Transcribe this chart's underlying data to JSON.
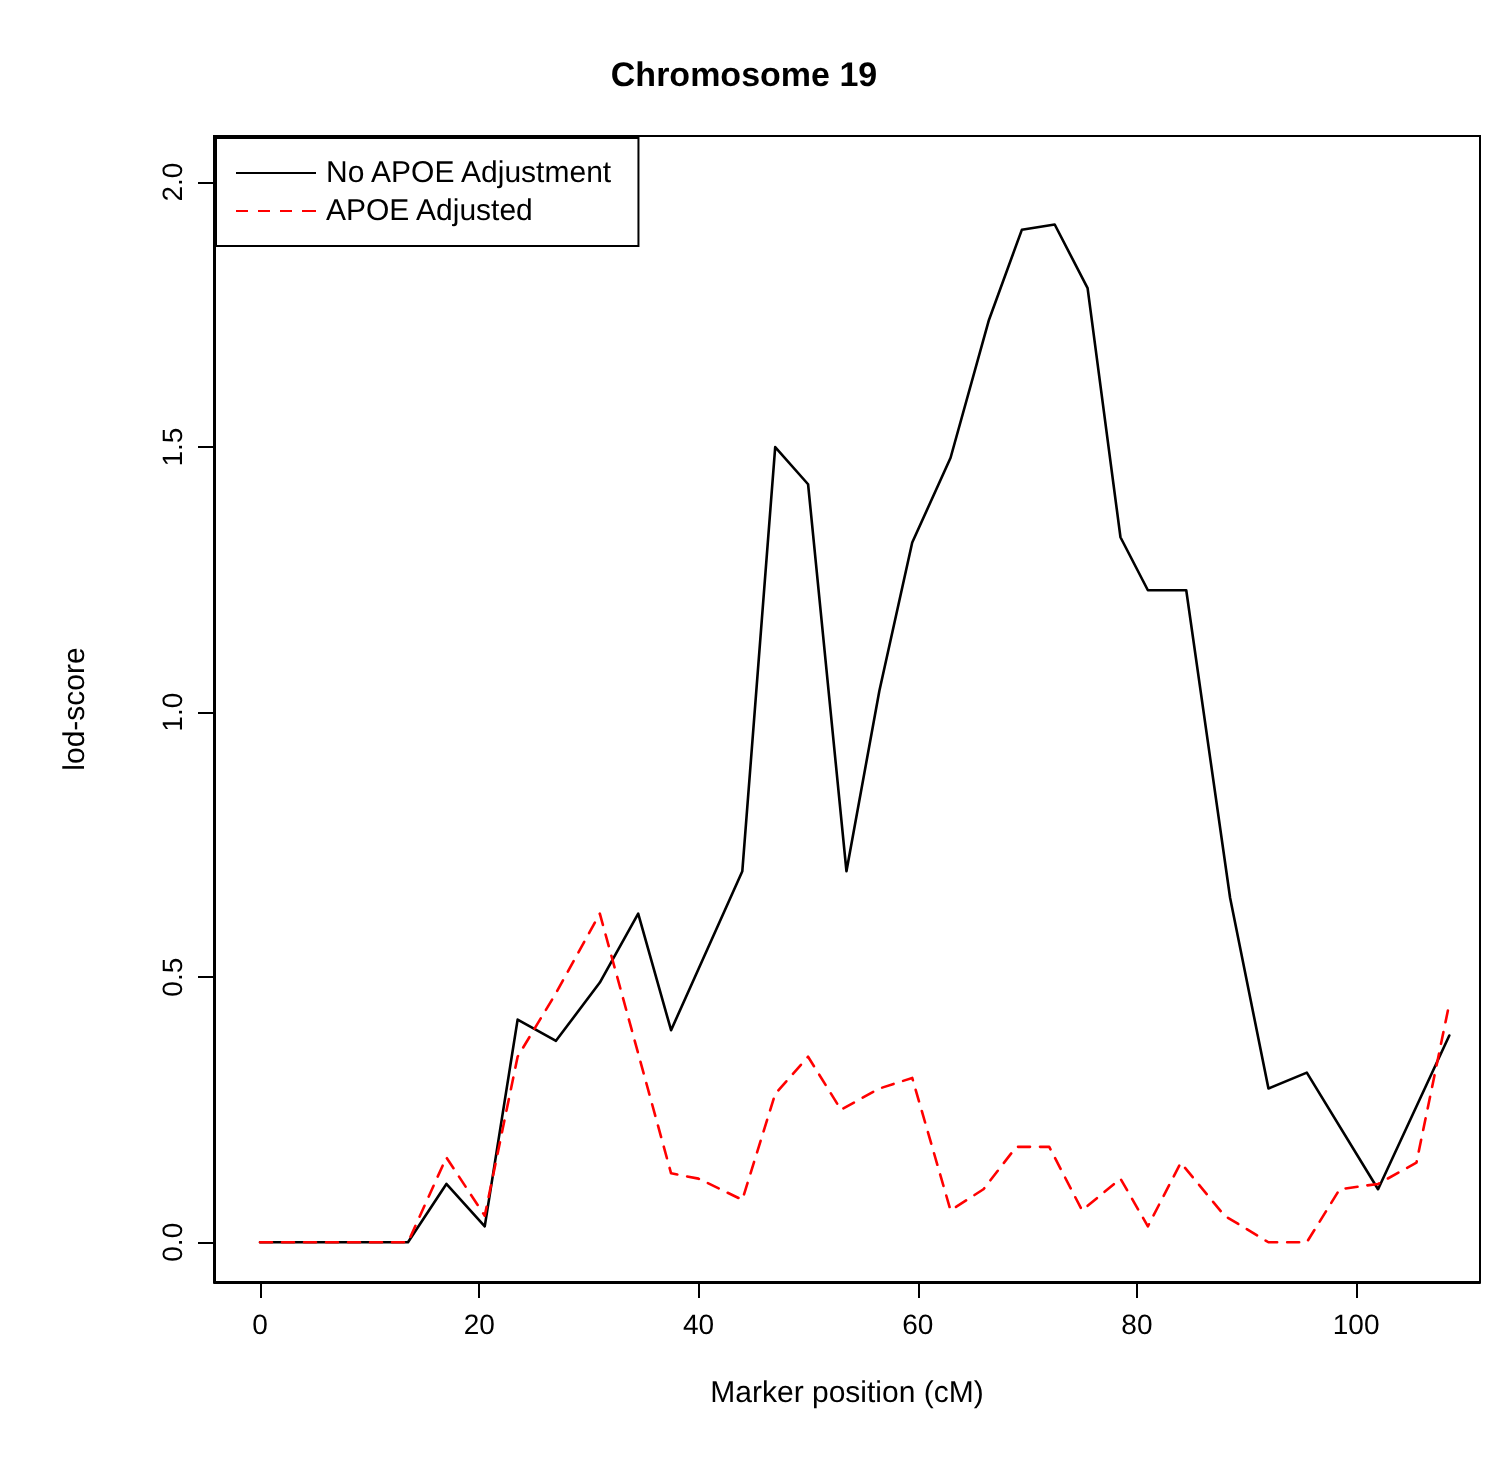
{
  "chart_data": {
    "type": "line",
    "title": "Chromosome 19",
    "xlabel": "Marker position (cM)",
    "ylabel": "lod-score",
    "xlim": [
      -4.2,
      111.3
    ],
    "xticks": [
      0,
      20,
      40,
      60,
      80,
      100
    ],
    "ylim": [
      -0.075,
      2.087
    ],
    "yticks": [
      {
        "value": 0,
        "label": "0.0"
      },
      0.5,
      {
        "value": 1,
        "label": "1.0"
      },
      1.5,
      {
        "value": 2,
        "label": "2.0"
      }
    ],
    "grid": false,
    "legend": "top left",
    "marker": "none",
    "series": [
      {
        "name": "No APOE Adjustment",
        "color": "#000000",
        "line_style": "solid",
        "x": [
          0,
          13.5,
          17,
          20.5,
          23.5,
          27,
          31,
          34.5,
          37.5,
          44,
          47,
          50,
          53.5,
          56.5,
          59.5,
          63,
          66.5,
          69.5,
          72.5,
          75.5,
          78.5,
          81,
          84.5,
          88.5,
          92,
          95.5,
          102,
          108.5
        ],
        "values": [
          0,
          0,
          0.11,
          0.03,
          0.42,
          0.38,
          0.49,
          0.62,
          0.4,
          0.7,
          1.5,
          1.43,
          0.7,
          1.04,
          1.32,
          1.48,
          1.74,
          1.91,
          1.92,
          1.8,
          1.33,
          1.23,
          1.23,
          0.65,
          0.29,
          0.32,
          0.1,
          0.39
        ]
      },
      {
        "name": "APOE Adjusted",
        "color": "#ff0000",
        "line_style": "dashed",
        "x": [
          0,
          13.5,
          17,
          20.5,
          23.5,
          27,
          31,
          37.5,
          40,
          44,
          47,
          50,
          53,
          56.5,
          59.5,
          63,
          66,
          69,
          72,
          75,
          78.5,
          81,
          84,
          88,
          92,
          95.5,
          98.5,
          102,
          105.5,
          108.5
        ],
        "values": [
          0,
          0,
          0.16,
          0.05,
          0.35,
          0.47,
          0.62,
          0.13,
          0.12,
          0.08,
          0.28,
          0.35,
          0.25,
          0.29,
          0.31,
          0.06,
          0.1,
          0.18,
          0.18,
          0.06,
          0.12,
          0.03,
          0.15,
          0.05,
          0.0,
          0.0,
          0.1,
          0.11,
          0.15,
          0.45
        ]
      }
    ]
  }
}
